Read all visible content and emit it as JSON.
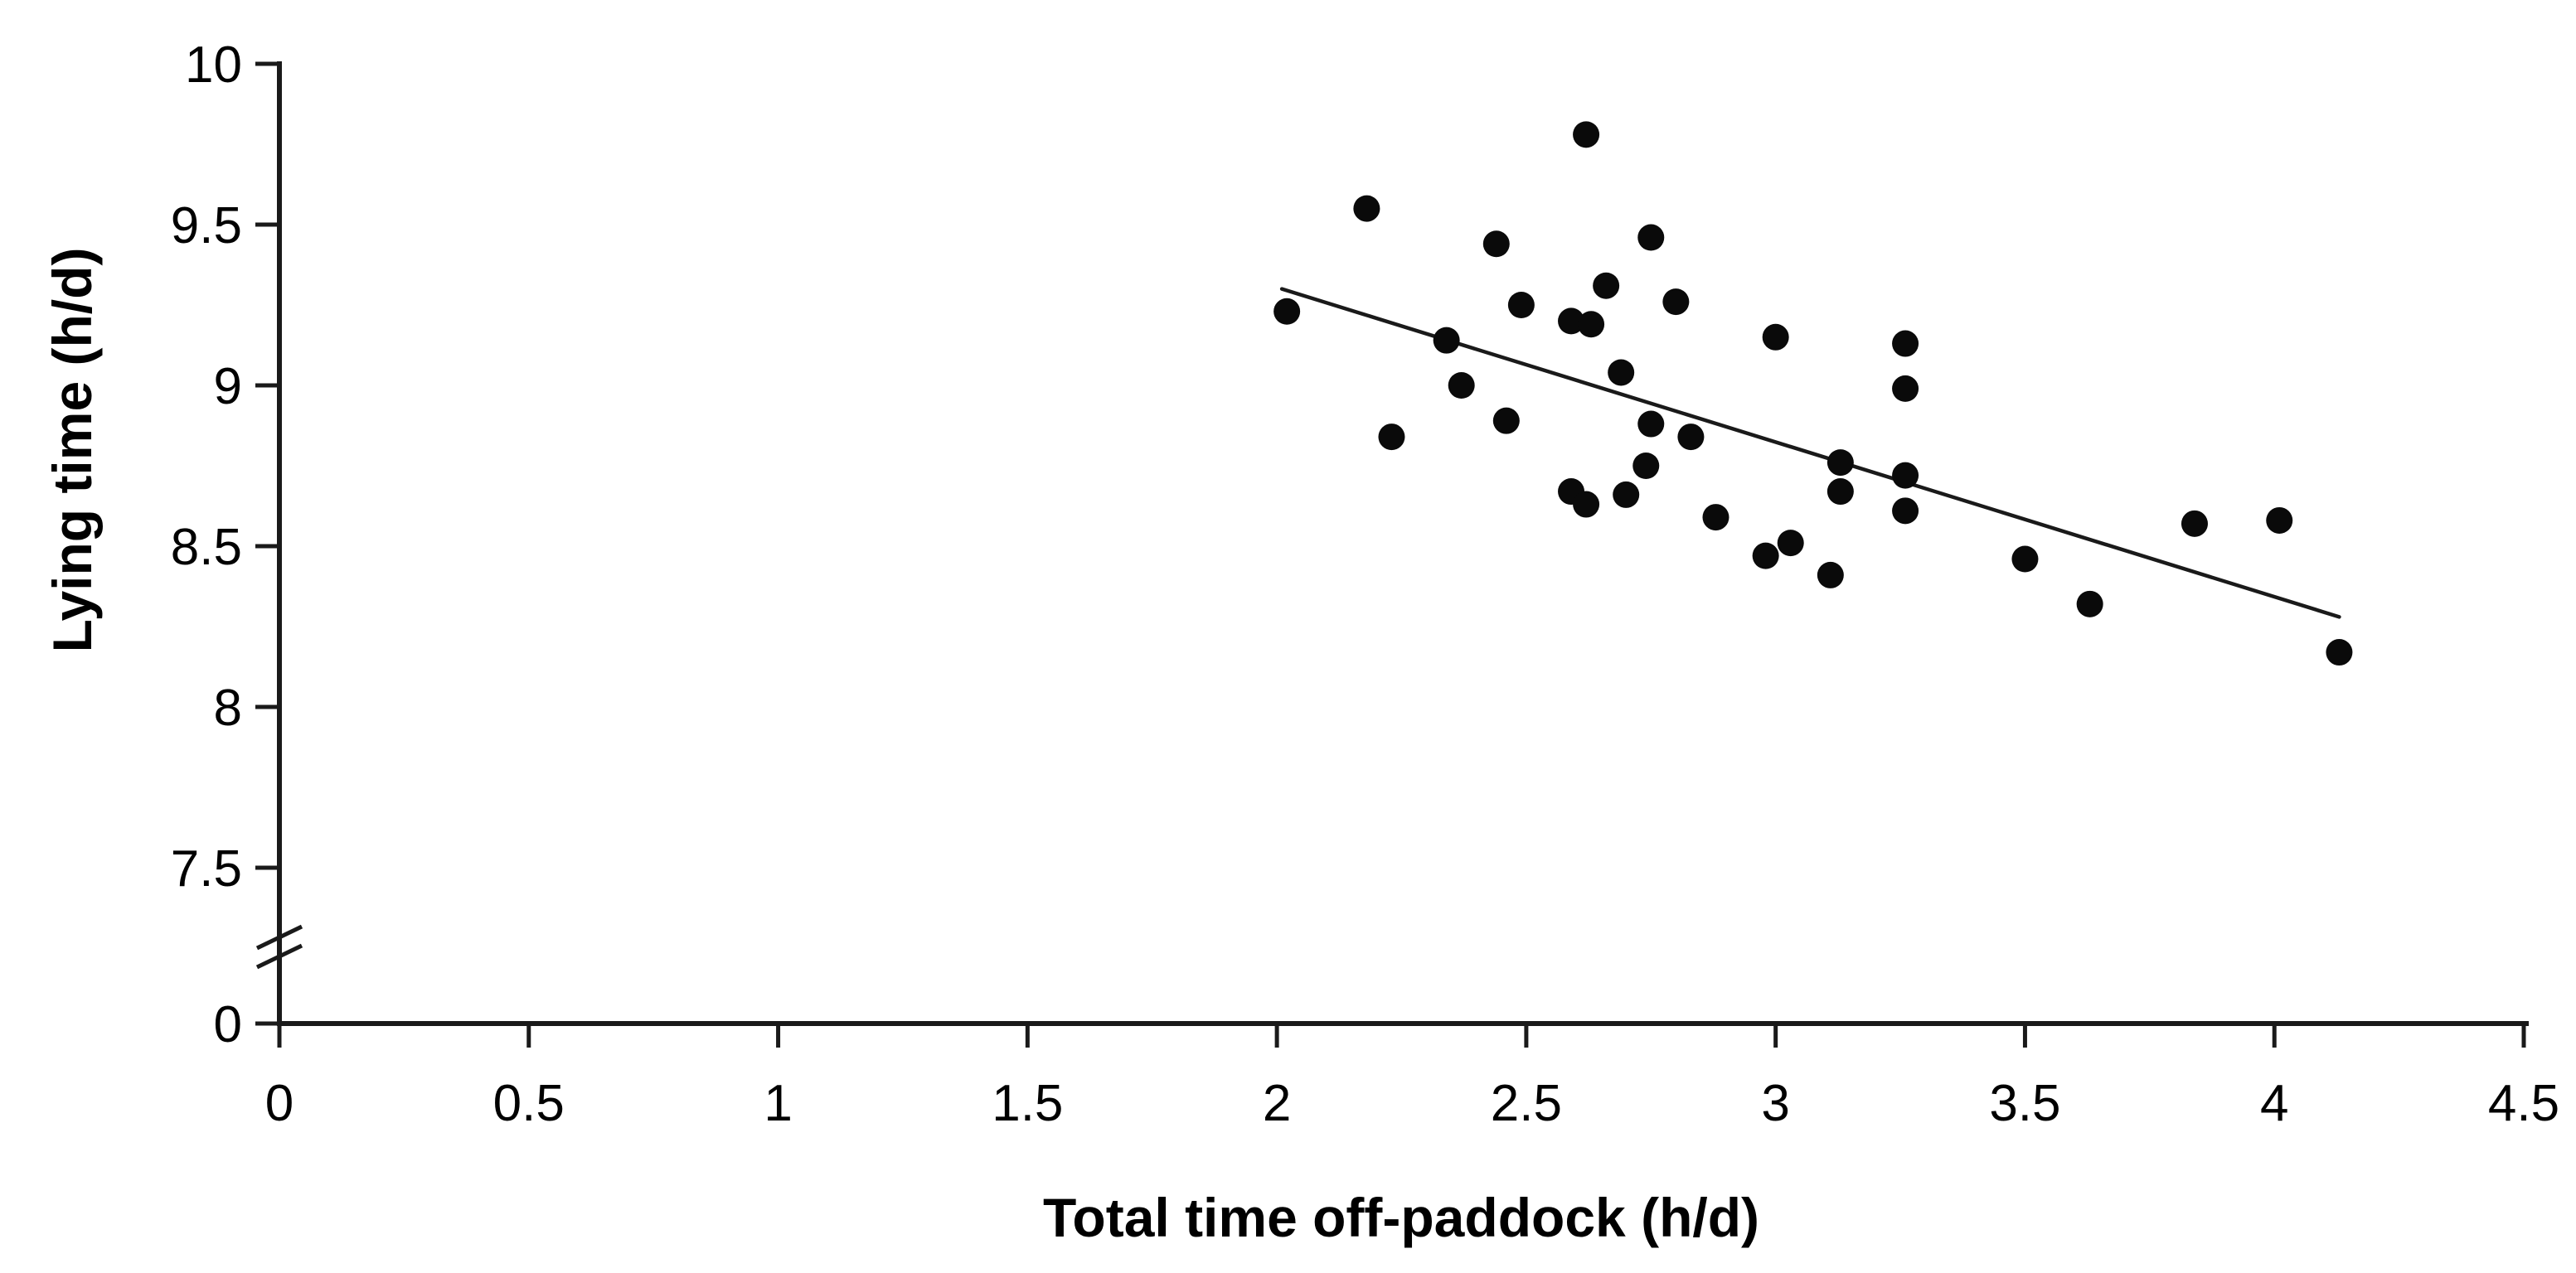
{
  "chart_data": {
    "type": "scatter",
    "title": "",
    "xlabel": "Total time off-paddock (h/d)",
    "ylabel": "Lying time (h/d)",
    "x_axis": {
      "min": 0,
      "max": 4.5,
      "ticks": [
        0,
        0.5,
        1,
        1.5,
        2,
        2.5,
        3,
        3.5,
        4,
        4.5
      ]
    },
    "y_axis": {
      "max": 10,
      "upper_min": 7.5,
      "ticks_upper": [
        10,
        9.5,
        9,
        8.5,
        8,
        7.5
      ],
      "bottom_tick": 0,
      "has_break": true
    },
    "grid": false,
    "legend": "none",
    "background_color": "#ffffff",
    "marker_color": "#0a0a0a",
    "axis_color": "#1a1a1a",
    "trendline_color": "#1a1a1a",
    "points": [
      [
        2.02,
        9.23
      ],
      [
        2.18,
        9.55
      ],
      [
        2.23,
        8.84
      ],
      [
        2.34,
        9.14
      ],
      [
        2.37,
        9.0
      ],
      [
        2.44,
        9.44
      ],
      [
        2.46,
        8.89
      ],
      [
        2.49,
        9.25
      ],
      [
        2.59,
        9.2
      ],
      [
        2.59,
        8.67
      ],
      [
        2.62,
        9.78
      ],
      [
        2.62,
        8.63
      ],
      [
        2.63,
        9.19
      ],
      [
        2.66,
        9.31
      ],
      [
        2.69,
        9.04
      ],
      [
        2.7,
        8.66
      ],
      [
        2.74,
        8.75
      ],
      [
        2.75,
        9.46
      ],
      [
        2.75,
        8.88
      ],
      [
        2.8,
        9.26
      ],
      [
        2.83,
        8.84
      ],
      [
        2.88,
        8.59
      ],
      [
        2.98,
        8.47
      ],
      [
        3.0,
        9.15
      ],
      [
        3.03,
        8.51
      ],
      [
        3.11,
        8.41
      ],
      [
        3.13,
        8.76
      ],
      [
        3.13,
        8.67
      ],
      [
        3.26,
        9.13
      ],
      [
        3.26,
        8.99
      ],
      [
        3.26,
        8.72
      ],
      [
        3.26,
        8.61
      ],
      [
        3.5,
        8.46
      ],
      [
        3.63,
        8.32
      ],
      [
        3.84,
        8.57
      ],
      [
        4.01,
        8.58
      ],
      [
        4.13,
        8.17
      ]
    ],
    "trendline": {
      "x1": 2.01,
      "y1": 9.3,
      "x2": 4.13,
      "y2": 8.28
    }
  }
}
